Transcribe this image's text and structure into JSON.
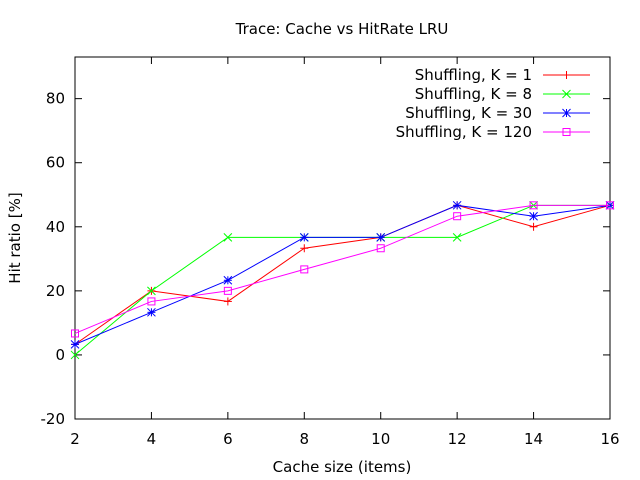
{
  "chart_data": {
    "type": "line",
    "title": "Trace: Cache vs HitRate LRU",
    "xlabel": "Cache size (items)",
    "ylabel": "Hit ratio [%]",
    "xlim": [
      2,
      16
    ],
    "ylim": [
      -20,
      93
    ],
    "xticks": [
      2,
      4,
      6,
      8,
      10,
      12,
      14,
      16
    ],
    "yticks": [
      -20,
      0,
      20,
      40,
      60,
      80
    ],
    "grid": false,
    "legend": "top-right",
    "x": [
      2,
      4,
      6,
      8,
      10,
      12,
      14,
      16
    ],
    "series": [
      {
        "name": "Shuffling, K = 1",
        "color": "#ff0000",
        "marker": "plus",
        "values": [
          3.3,
          20.0,
          16.7,
          33.3,
          36.7,
          46.7,
          40.0,
          46.7
        ]
      },
      {
        "name": "Shuffling, K = 8",
        "color": "#00ff00",
        "marker": "cross",
        "values": [
          0.0,
          20.0,
          36.7,
          36.7,
          36.7,
          36.7,
          46.7,
          46.7
        ]
      },
      {
        "name": "Shuffling, K = 30",
        "color": "#0000ff",
        "marker": "star",
        "values": [
          3.3,
          13.3,
          23.3,
          36.7,
          36.7,
          46.7,
          43.3,
          46.7
        ]
      },
      {
        "name": "Shuffling, K = 120",
        "color": "#ff00ff",
        "marker": "open-square",
        "values": [
          6.7,
          16.7,
          20.0,
          26.7,
          33.3,
          43.3,
          46.7,
          46.7
        ]
      }
    ]
  }
}
